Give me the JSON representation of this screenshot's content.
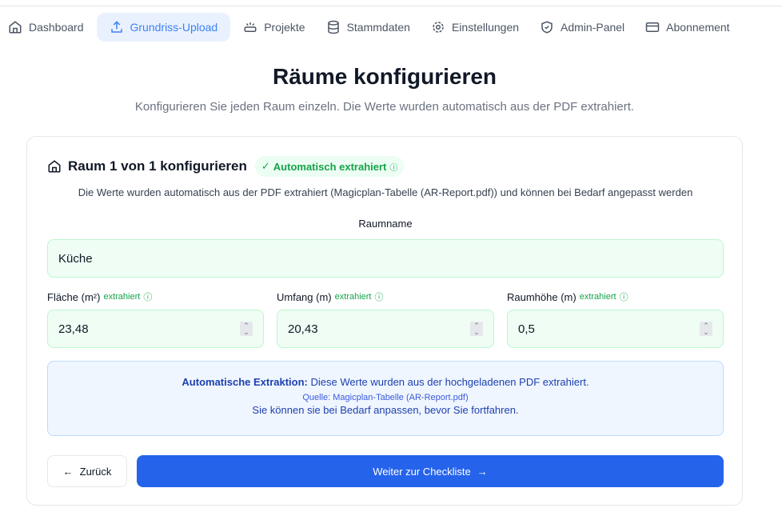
{
  "nav": {
    "items": [
      {
        "label": "Dashboard",
        "icon": "home-icon"
      },
      {
        "label": "Grundriss-Upload",
        "icon": "upload-icon",
        "active": true
      },
      {
        "label": "Projekte",
        "icon": "projects-icon"
      },
      {
        "label": "Stammdaten",
        "icon": "database-icon"
      },
      {
        "label": "Einstellungen",
        "icon": "gear-icon"
      },
      {
        "label": "Admin-Panel",
        "icon": "shield-icon"
      },
      {
        "label": "Abonnement",
        "icon": "credit-card-icon"
      }
    ]
  },
  "page": {
    "title": "Räume konfigurieren",
    "subtitle": "Konfigurieren Sie jeden Raum einzeln. Die Werte wurden automatisch aus der PDF extrahiert."
  },
  "card": {
    "title": "Raum 1 von 1 konfigurieren",
    "badge": "Automatisch extrahiert",
    "description": "Die Werte wurden automatisch aus der PDF extrahiert (Magicplan-Tabelle (AR-Report.pdf)) und können bei Bedarf angepasst werden",
    "room_name_label": "Raumname",
    "room_name_value": "Küche",
    "fields": [
      {
        "label": "Fläche (m²)",
        "tag": "extrahiert",
        "value": "23,48"
      },
      {
        "label": "Umfang (m)",
        "tag": "extrahiert",
        "value": "20,43"
      },
      {
        "label": "Raumhöhe (m)",
        "tag": "extrahiert",
        "value": "0,5"
      }
    ],
    "info": {
      "bold": "Automatische Extraktion:",
      "text": " Diese Werte wurden aus der hochgeladenen PDF extrahiert.",
      "source": "Quelle: Magicplan-Tabelle (AR-Report.pdf)",
      "hint": "Sie können sie bei Bedarf anpassen, bevor Sie fortfahren."
    },
    "back_label": "Zurück",
    "next_label": "Weiter zur Checkliste"
  },
  "colors": {
    "accent": "#2563eb",
    "success": "#16a34a"
  }
}
